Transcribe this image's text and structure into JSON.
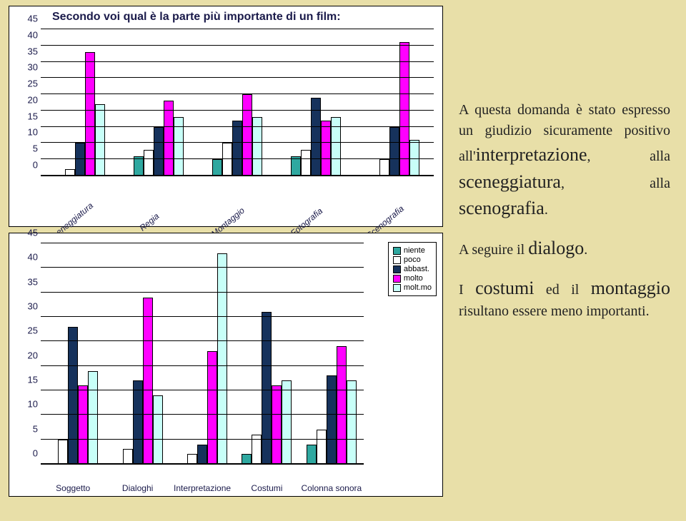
{
  "background_color": "#e8dfa8",
  "legend": {
    "colors": {
      "niente": "#2fa8a0",
      "poco": "#ffffff",
      "abbast": "#16325c",
      "molto": "#ff00ff",
      "moltmo": "#c8fff8"
    },
    "labels": {
      "niente": "niente",
      "poco": "poco",
      "abbast": "abbast.",
      "molto": "molto",
      "moltmo": "molt.mo"
    }
  },
  "chart1": {
    "title": "Secondo voi qual è la parte più importante di un film:",
    "ymax": 45,
    "ystep": 5,
    "categories": [
      "Sceneggiatura",
      "Regia",
      "Montaggio",
      "Fotografia",
      "Scenografia"
    ],
    "series_order": [
      "niente",
      "poco",
      "abbast",
      "molto",
      "moltmo"
    ],
    "data": {
      "Sceneggiatura": [
        0,
        2,
        10,
        38,
        22
      ],
      "Regia": [
        6,
        8,
        15,
        23,
        18
      ],
      "Montaggio": [
        5,
        10,
        17,
        25,
        18
      ],
      "Fotografia": [
        6,
        8,
        24,
        17,
        18
      ],
      "Scenografia": [
        0,
        5,
        15,
        41,
        11
      ]
    }
  },
  "chart2": {
    "ymax": 45,
    "ystep": 5,
    "categories": [
      "Soggetto",
      "Dialoghi",
      "Interpretazione",
      "Costumi",
      "Colonna sonora"
    ],
    "series_order": [
      "niente",
      "poco",
      "abbast",
      "molto",
      "moltmo"
    ],
    "data": {
      "Soggetto": [
        0,
        5,
        28,
        16,
        19
      ],
      "Dialoghi": [
        0,
        3,
        17,
        34,
        14
      ],
      "Interpretazione": [
        0,
        2,
        4,
        23,
        43
      ],
      "Costumi": [
        2,
        6,
        31,
        16,
        17
      ],
      "Colonna sonora": [
        4,
        7,
        18,
        24,
        17
      ]
    }
  },
  "commentary": {
    "p1_pre": "A questa domanda è stato espresso un giudizio sicuramente positivo all'",
    "p1_b1": "interpretazione",
    "p1_mid1": ", alla ",
    "p1_b2": "sceneggiatura",
    "p1_mid2": ", alla ",
    "p1_b3": "scenografia",
    "p1_end": ".",
    "p2_pre": "A seguire il ",
    "p2_b1": "dialogo",
    "p2_end": ".",
    "p3_pre": "I ",
    "p3_b1": "costumi",
    "p3_mid": " ed il ",
    "p3_b2": "montaggio",
    "p3_end": " risultano essere meno importanti."
  }
}
